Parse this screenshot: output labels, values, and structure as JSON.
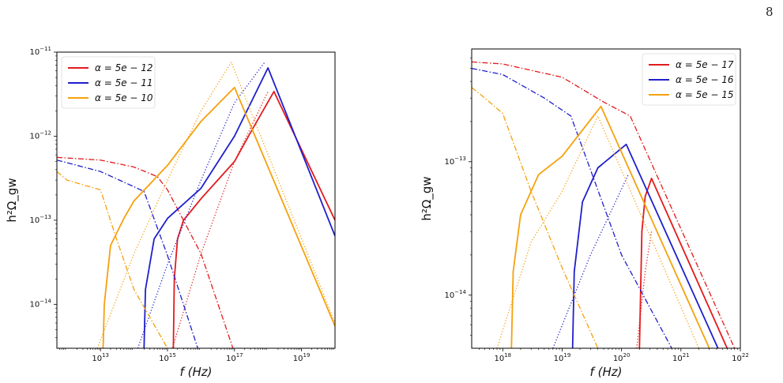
{
  "page": {
    "number": "8"
  },
  "chart_data": [
    {
      "type": "line",
      "xscale": "log",
      "yscale": "log",
      "xlabel": "f (Hz)",
      "ylabel": "h²Ω_gw",
      "xlim": [
        500000000000.0,
        1e+20
      ],
      "ylim": [
        3e-15,
        1e-11
      ],
      "xticks": [
        {
          "value": 10000000000000.0,
          "mant": "10",
          "exp": "13"
        },
        {
          "value": 1000000000000000.0,
          "mant": "10",
          "exp": "15"
        },
        {
          "value": 1e+17,
          "mant": "10",
          "exp": "17"
        },
        {
          "value": 1e+19,
          "mant": "10",
          "exp": "19"
        }
      ],
      "yticks": [
        {
          "value": 1e-14,
          "mant": "10",
          "exp": "−14"
        },
        {
          "value": 1e-13,
          "mant": "10",
          "exp": "−13"
        },
        {
          "value": 1e-12,
          "mant": "10",
          "exp": "−12"
        },
        {
          "value": 1e-11,
          "mant": "10",
          "exp": "−11"
        }
      ],
      "grid": false,
      "legend_position": "top-left",
      "legend": [
        {
          "label": "α = 5e − 12",
          "color": "#e41a1c"
        },
        {
          "label": "α = 5e − 11",
          "color": "#1f1fcc"
        },
        {
          "label": "α = 5e − 10",
          "color": "#f5a10d"
        }
      ],
      "series": [
        {
          "color": "#e41a1c",
          "style": "solid",
          "points": [
            [
              1500000000000000.0,
              3e-15
            ],
            [
              1600000000000000.0,
              2e-14
            ],
            [
              2000000000000000.0,
              6e-14
            ],
            [
              3000000000000000.0,
              1e-13
            ],
            [
              1e+16,
              1.8e-13
            ],
            [
              1e+17,
              5e-13
            ],
            [
              3e+17,
              1.1e-12
            ],
            [
              1.5e+18,
              3.4e-12
            ],
            [
              1e+20,
              1e-13
            ]
          ]
        },
        {
          "color": "#e41a1c",
          "style": "dotted",
          "points": [
            [
              1400000000000000.0,
              3e-15
            ],
            [
              1e+16,
              4e-14
            ],
            [
              1e+17,
              5e-13
            ],
            [
              1e+18,
              3.4e-12
            ]
          ]
        },
        {
          "color": "#e41a1c",
          "style": "dashdot",
          "points": [
            [
              500000000000.0,
              5.6e-13
            ],
            [
              10000000000000.0,
              5.2e-13
            ],
            [
              100000000000000.0,
              4.3e-13
            ],
            [
              500000000000000.0,
              3.3e-13
            ],
            [
              1000000000000000.0,
              2.3e-13
            ],
            [
              1e+16,
              4e-14
            ],
            [
              9e+16,
              3e-15
            ]
          ]
        },
        {
          "color": "#1f1fcc",
          "style": "solid",
          "points": [
            [
              200000000000000.0,
              3e-15
            ],
            [
              220000000000000.0,
              1.5e-14
            ],
            [
              400000000000000.0,
              6e-14
            ],
            [
              1000000000000000.0,
              1.05e-13
            ],
            [
              1e+16,
              2.4e-13
            ],
            [
              1e+17,
              1e-12
            ],
            [
              1e+18,
              6.5e-12
            ],
            [
              1e+20,
              6.5e-14
            ]
          ]
        },
        {
          "color": "#1f1fcc",
          "style": "dotted",
          "points": [
            [
              130000000000000.0,
              3e-15
            ],
            [
              1000000000000000.0,
              3e-14
            ],
            [
              1e+16,
              3e-13
            ],
            [
              1e+17,
              2.5e-12
            ],
            [
              8e+17,
              7.6e-12
            ]
          ]
        },
        {
          "color": "#1f1fcc",
          "style": "dashdot",
          "points": [
            [
              500000000000.0,
              5.2e-13
            ],
            [
              10000000000000.0,
              3.8e-13
            ],
            [
              100000000000000.0,
              2.5e-13
            ],
            [
              200000000000000.0,
              2.2e-13
            ],
            [
              1000000000000000.0,
              3.8e-14
            ],
            [
              8000000000000000.0,
              3e-15
            ]
          ]
        },
        {
          "color": "#f5a10d",
          "style": "solid",
          "points": [
            [
              12000000000000.0,
              3e-15
            ],
            [
              13000000000000.0,
              1e-14
            ],
            [
              20000000000000.0,
              5e-14
            ],
            [
              50000000000000.0,
              1.05e-13
            ],
            [
              100000000000000.0,
              1.7e-13
            ],
            [
              1000000000000000.0,
              4.5e-13
            ],
            [
              1e+16,
              1.5e-12
            ],
            [
              1e+17,
              3.8e-12
            ],
            [
              1e+20,
              5.5e-15
            ]
          ]
        },
        {
          "color": "#f5a10d",
          "style": "dotted",
          "points": [
            [
              8000000000000.0,
              3e-15
            ],
            [
              100000000000000.0,
              4e-14
            ],
            [
              1000000000000000.0,
              3e-13
            ],
            [
              1e+16,
              2e-12
            ],
            [
              8e+16,
              7.6e-12
            ],
            [
              2e+20,
              3e-15
            ]
          ]
        },
        {
          "color": "#f5a10d",
          "style": "dashdot",
          "points": [
            [
              500000000000.0,
              3.8e-13
            ],
            [
              1000000000000.0,
              3e-13
            ],
            [
              10000000000000.0,
              2.3e-13
            ],
            [
              30000000000000.0,
              6e-14
            ],
            [
              100000000000000.0,
              1.5e-14
            ],
            [
              1000000000000000.0,
              3e-15
            ]
          ]
        }
      ]
    },
    {
      "type": "line",
      "xscale": "log",
      "yscale": "log",
      "xlabel": "f (Hz)",
      "ylabel": "h²Ω_gw",
      "xlim": [
        3e+17,
        1e+22
      ],
      "ylim": [
        4e-15,
        7e-13
      ],
      "xticks": [
        {
          "value": 1e+18,
          "mant": "10",
          "exp": "18"
        },
        {
          "value": 1e+19,
          "mant": "10",
          "exp": "19"
        },
        {
          "value": 1e+20,
          "mant": "10",
          "exp": "20"
        },
        {
          "value": 1e+21,
          "mant": "10",
          "exp": "21"
        },
        {
          "value": 1e+22,
          "mant": "10",
          "exp": "22"
        }
      ],
      "yticks": [
        {
          "value": 1e-14,
          "mant": "10",
          "exp": "−14"
        },
        {
          "value": 1e-13,
          "mant": "10",
          "exp": "−13"
        }
      ],
      "grid": false,
      "legend_position": "top-right",
      "legend": [
        {
          "label": "α = 5e − 17",
          "color": "#e41a1c"
        },
        {
          "label": "α = 5e − 16",
          "color": "#1f1fcc"
        },
        {
          "label": "α = 5e − 15",
          "color": "#f5a10d"
        }
      ],
      "series": [
        {
          "color": "#e41a1c",
          "style": "solid",
          "points": [
            [
              2e+20,
              4e-15
            ],
            [
              2.2e+20,
              3e-14
            ],
            [
              2.5e+20,
              5.5e-14
            ],
            [
              3.2e+20,
              7.5e-14
            ],
            [
              6e+21,
              4e-15
            ]
          ]
        },
        {
          "color": "#e41a1c",
          "style": "dotted",
          "points": [
            [
              1.8e+20,
              4e-15
            ],
            [
              2.5e+20,
              1.5e-14
            ],
            [
              3.2e+20,
              3e-14
            ]
          ]
        },
        {
          "color": "#e41a1c",
          "style": "dashdot",
          "points": [
            [
              3e+17,
              5.6e-13
            ],
            [
              1e+18,
              5.4e-13
            ],
            [
              1e+19,
              4.3e-13
            ],
            [
              5e+19,
              2.8e-13
            ],
            [
              1.4e+20,
              2.2e-13
            ],
            [
              8e+21,
              4e-15
            ]
          ]
        },
        {
          "color": "#1f1fcc",
          "style": "solid",
          "points": [
            [
              1.5e+19,
              4e-15
            ],
            [
              1.6e+19,
              1.5e-14
            ],
            [
              2.2e+19,
              5e-14
            ],
            [
              4e+19,
              9e-14
            ],
            [
              1.2e+20,
              1.35e-13
            ],
            [
              4.2e+21,
              4e-15
            ]
          ]
        },
        {
          "color": "#1f1fcc",
          "style": "dotted",
          "points": [
            [
              7e+18,
              4e-15
            ],
            [
              3e+19,
              2e-14
            ],
            [
              1.3e+20,
              8e-14
            ]
          ]
        },
        {
          "color": "#1f1fcc",
          "style": "dashdot",
          "points": [
            [
              3e+17,
              5e-13
            ],
            [
              1e+18,
              4.5e-13
            ],
            [
              5e+18,
              3e-13
            ],
            [
              1.4e+19,
              2.2e-13
            ],
            [
              1e+20,
              2e-14
            ],
            [
              7e+20,
              4e-15
            ]
          ]
        },
        {
          "color": "#f5a10d",
          "style": "solid",
          "points": [
            [
              1.4e+18,
              4e-15
            ],
            [
              1.5e+18,
              1.5e-14
            ],
            [
              2e+18,
              4e-14
            ],
            [
              4e+18,
              8e-14
            ],
            [
              1e+19,
              1.1e-13
            ],
            [
              4.5e+19,
              2.6e-13
            ],
            [
              3e+21,
              4e-15
            ]
          ]
        },
        {
          "color": "#f5a10d",
          "style": "dotted",
          "points": [
            [
              8e+17,
              4e-15
            ],
            [
              3e+18,
              2.5e-14
            ],
            [
              1e+19,
              6e-14
            ],
            [
              4e+19,
              2.2e-13
            ],
            [
              2e+21,
              4e-15
            ]
          ]
        },
        {
          "color": "#f5a10d",
          "style": "dashdot",
          "points": [
            [
              3e+17,
              3.6e-13
            ],
            [
              5e+17,
              3e-13
            ],
            [
              1e+18,
              2.3e-13
            ],
            [
              3e+18,
              6e-14
            ],
            [
              1e+19,
              1.6e-14
            ],
            [
              4e+19,
              4e-15
            ]
          ]
        }
      ]
    }
  ]
}
